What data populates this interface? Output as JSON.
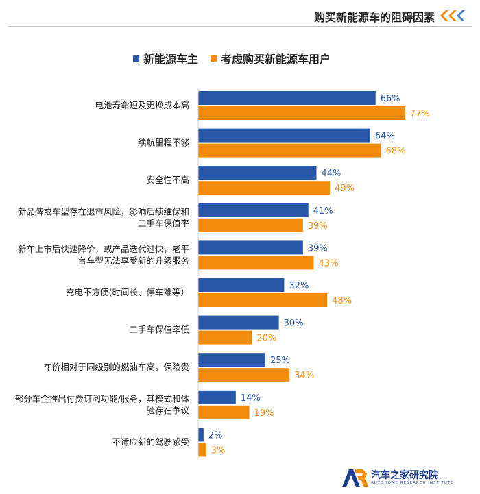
{
  "header": {
    "title": "购买新能源车的阻碍因素"
  },
  "colors": {
    "owner": "#2a58a8",
    "prospect": "#f28c0c",
    "chevron_orange": "#f28c0c",
    "chevron_blue": "#4a78c4",
    "logo_blue": "#1d3f8f"
  },
  "legend": {
    "items": [
      {
        "label": "新能源车主",
        "color": "#2a58a8"
      },
      {
        "label": "考虑购买新能源车用户",
        "color": "#f28c0c"
      }
    ]
  },
  "chart_data": {
    "type": "bar",
    "orientation": "horizontal",
    "categories": [
      "电池寿命短及更换成本高",
      "续航里程不够",
      "安全性不高",
      "新品牌或车型存在退市风险，影响后续维保和二手车保值率",
      "新车上市后快速降价，或产品迭代过快，老平台车型无法享受新的升级服务",
      "充电不方便(时间长、停车难等）",
      "二手车保值率低",
      "车价相对于同级别的燃油车高，保险贵",
      "部分车企推出付费订阅功能/服务，其模式和体验存在争议",
      "不适应新的驾驶感受"
    ],
    "category_lines": [
      [
        "电池寿命短及更换成本高"
      ],
      [
        "续航里程不够"
      ],
      [
        "安全性不高"
      ],
      [
        "新品牌或车型存在退市风险，影响后续维保和",
        "二手车保值率"
      ],
      [
        "新车上市后快速降价，或产品迭代过快，老平",
        "台车型无法享受新的升级服务"
      ],
      [
        "充电不方便(时间长、停车难等）"
      ],
      [
        "二手车保值率低"
      ],
      [
        "车价相对于同级别的燃油车高，保险贵"
      ],
      [
        "部分车企推出付费订阅功能/服务，其模式和体",
        "验存在争议"
      ],
      [
        "不适应新的驾驶感受"
      ]
    ],
    "series": [
      {
        "name": "新能源车主",
        "values": [
          66,
          64,
          44,
          41,
          39,
          32,
          30,
          25,
          14,
          2
        ],
        "labels": [
          "66%",
          "64%",
          "44%",
          "41%",
          "39%",
          "32%",
          "30%",
          "25%",
          "14%",
          "2%"
        ]
      },
      {
        "name": "考虑购买新能源车用户",
        "values": [
          77,
          68,
          49,
          39,
          43,
          48,
          20,
          34,
          19,
          3
        ],
        "labels": [
          "77%",
          "68%",
          "49%",
          "39%",
          "43%",
          "48%",
          "20%",
          "34%",
          "19%",
          "3%"
        ]
      }
    ],
    "xlim": [
      0,
      100
    ],
    "grid": false,
    "legend_position": "top"
  },
  "footer": {
    "logo_name": "汽车之家研究院",
    "logo_sub": "AUTOHOME RESEARCH INSTITUTE",
    "logo_mark": "AR"
  }
}
